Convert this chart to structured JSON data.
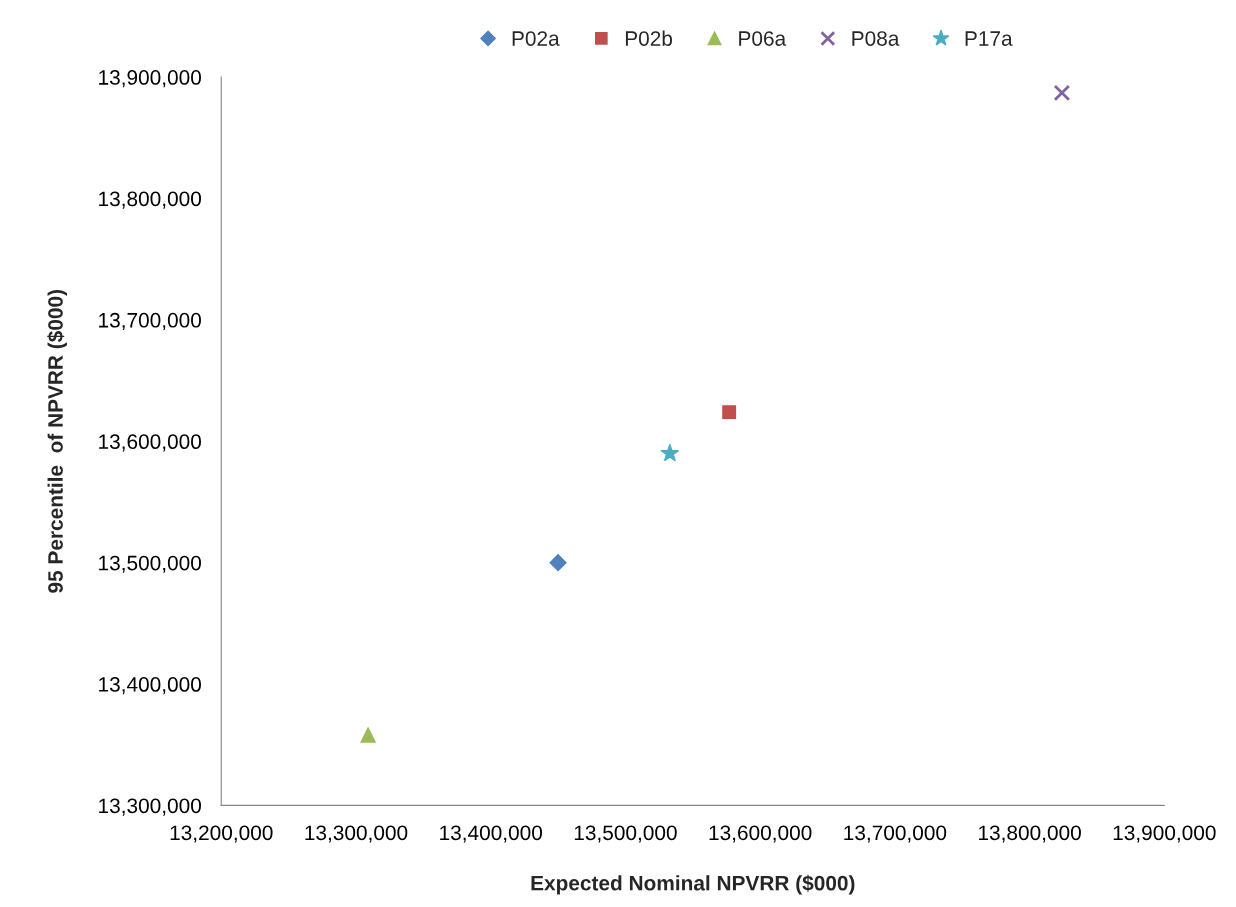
{
  "chart_data": {
    "type": "scatter",
    "xlabel": "Expected Nominal NPVRR ($000)",
    "ylabel": "95 Percentile  of NPVRR ($000)",
    "xlim": [
      13200000,
      13900000
    ],
    "ylim": [
      13300000,
      13900000
    ],
    "xticks": [
      {
        "value": 13200000,
        "label": "13,200,000"
      },
      {
        "value": 13300000,
        "label": "13,300,000"
      },
      {
        "value": 13400000,
        "label": "13,400,000"
      },
      {
        "value": 13500000,
        "label": "13,500,000"
      },
      {
        "value": 13600000,
        "label": "13,600,000"
      },
      {
        "value": 13700000,
        "label": "13,700,000"
      },
      {
        "value": 13800000,
        "label": "13,800,000"
      },
      {
        "value": 13900000,
        "label": "13,900,000"
      }
    ],
    "yticks": [
      {
        "value": 13300000,
        "label": "13,300,000"
      },
      {
        "value": 13400000,
        "label": "13,400,000"
      },
      {
        "value": 13500000,
        "label": "13,500,000"
      },
      {
        "value": 13600000,
        "label": "13,600,000"
      },
      {
        "value": 13700000,
        "label": "13,700,000"
      },
      {
        "value": 13800000,
        "label": "13,800,000"
      },
      {
        "value": 13900000,
        "label": "13,900,000"
      }
    ],
    "grid": false,
    "legend": "top",
    "series": [
      {
        "name": "P02a",
        "color": "#4f81bd",
        "marker": "diamond",
        "x": [
          13450000
        ],
        "values": [
          13500000
        ]
      },
      {
        "name": "P02b",
        "color": "#c0504d",
        "marker": "square",
        "x": [
          13577000
        ],
        "values": [
          13624000
        ]
      },
      {
        "name": "P06a",
        "color": "#9bbb59",
        "marker": "triangle",
        "x": [
          13309000
        ],
        "values": [
          13358000
        ]
      },
      {
        "name": "P08a",
        "color": "#8064a2",
        "marker": "cross",
        "x": [
          13824000
        ],
        "values": [
          13887000
        ]
      },
      {
        "name": "P17a",
        "color": "#4bacc6",
        "marker": "star",
        "x": [
          13533000
        ],
        "values": [
          13590000
        ]
      }
    ]
  }
}
